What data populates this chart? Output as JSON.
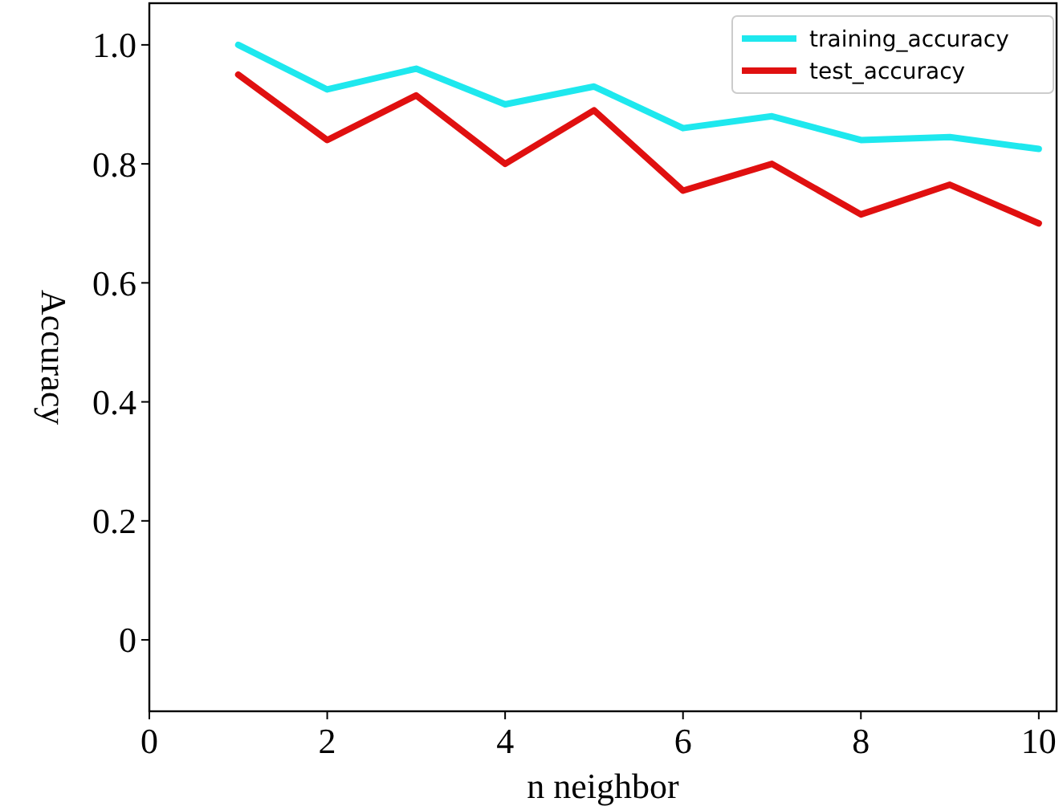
{
  "chart_data": {
    "type": "line",
    "xlabel": "n neighbor",
    "ylabel": "Accuracy",
    "x": [
      1,
      2,
      3,
      4,
      5,
      6,
      7,
      8,
      9,
      10
    ],
    "series": [
      {
        "name": "training_accuracy",
        "color": "#1ee8ee",
        "values": [
          1.0,
          0.925,
          0.96,
          0.9,
          0.93,
          0.86,
          0.88,
          0.84,
          0.845,
          0.825
        ]
      },
      {
        "name": "test_accuracy",
        "color": "#e01010",
        "values": [
          0.95,
          0.84,
          0.915,
          0.8,
          0.89,
          0.755,
          0.8,
          0.715,
          0.765,
          0.7
        ]
      }
    ],
    "xlim": [
      0,
      10.2
    ],
    "xticks": [
      0,
      2,
      4,
      6,
      8,
      10
    ],
    "ylim": [
      -0.12,
      1.07
    ],
    "yticks": [
      {
        "value": 0,
        "label": "0"
      },
      0.2,
      0.4,
      0.6,
      0.8,
      {
        "value": 1,
        "label": "1.0"
      }
    ],
    "legend": "top right",
    "grid": false,
    "line_style": "solid"
  }
}
